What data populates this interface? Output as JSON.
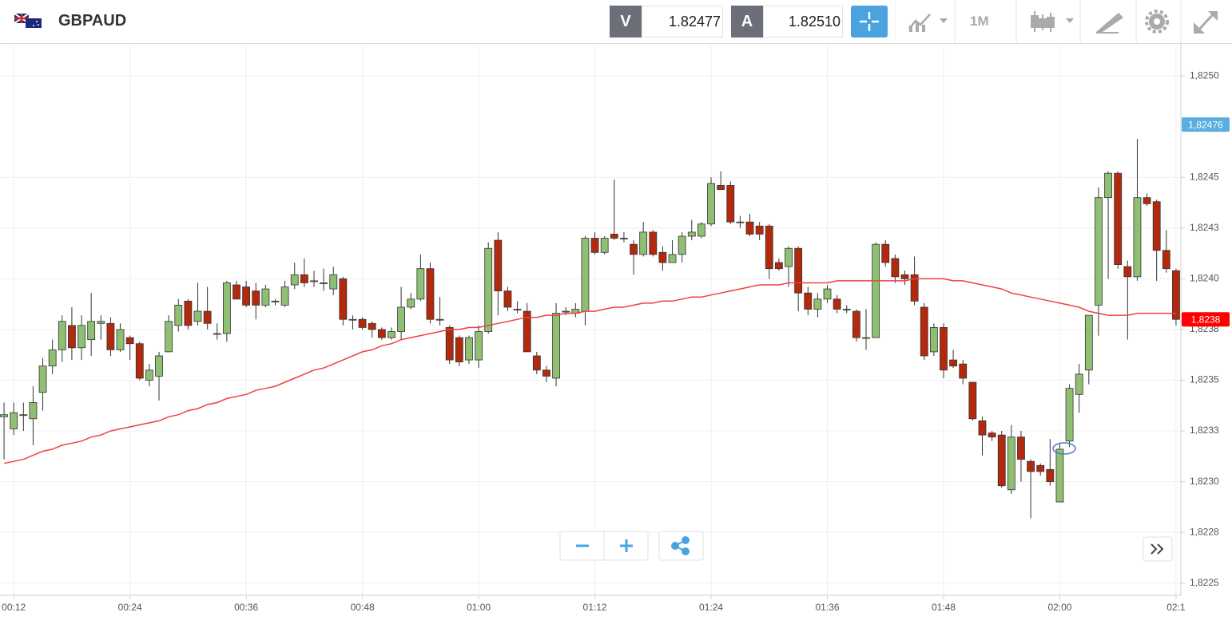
{
  "header": {
    "symbol": "GBPAUD",
    "bid_label": "V",
    "bid": "1.82477",
    "ask_label": "A",
    "ask": "1.82510",
    "timeframe": "1M"
  },
  "chart_data": {
    "type": "candlestick",
    "categories": [
      null,
      "00:12",
      null,
      null,
      null,
      null,
      null,
      null,
      null,
      null,
      null,
      null,
      null,
      "00:24",
      null,
      null,
      null,
      null,
      null,
      null,
      null,
      null,
      null,
      null,
      null,
      "00:36",
      null,
      null,
      null,
      null,
      null,
      null,
      null,
      null,
      null,
      null,
      null,
      "00:48",
      null,
      null,
      null,
      null,
      null,
      null,
      null,
      null,
      null,
      null,
      null,
      "01:00",
      null,
      null,
      null,
      null,
      null,
      null,
      null,
      null,
      null,
      null,
      null,
      "01:12",
      null,
      null,
      null,
      null,
      null,
      null,
      null,
      null,
      null,
      null,
      null,
      "01:24",
      null,
      null,
      null,
      null,
      null,
      null,
      null,
      null,
      null,
      null,
      null,
      "01:36",
      null,
      null,
      null,
      null,
      null,
      null,
      null,
      null,
      null,
      null,
      null,
      "01:48",
      null,
      null,
      null,
      null,
      null,
      null,
      null,
      null,
      null,
      null,
      null,
      "02:00",
      null,
      null,
      null,
      null,
      null,
      null,
      null,
      null,
      null,
      null,
      null,
      "02:1"
    ],
    "open": [
      1.82332,
      1.82326,
      1.82333,
      1.82331,
      1.82344,
      1.82357,
      1.82365,
      1.82377,
      1.82366,
      1.8237,
      1.82378,
      1.82378,
      1.82365,
      1.82371,
      1.82368,
      1.8235,
      1.82352,
      1.82364,
      1.82377,
      1.82389,
      1.82379,
      1.82384,
      1.82373,
      1.82373,
      1.82397,
      1.82396,
      1.82394,
      1.82387,
      1.82389,
      1.82387,
      1.82397,
      1.82402,
      1.82399,
      1.82398,
      1.82395,
      1.824,
      1.8238,
      1.8238,
      1.82378,
      1.82375,
      1.82371,
      1.82374,
      1.82386,
      1.8239,
      1.82405,
      1.8238,
      1.82376,
      1.82371,
      1.8236,
      1.8236,
      1.82374,
      1.82419,
      1.82394,
      1.82385,
      1.82384,
      1.82362,
      1.82355,
      1.82351,
      1.82384,
      1.82383,
      1.82384,
      1.8242,
      1.82413,
      1.82422,
      1.8242,
      1.82417,
      1.82412,
      1.82423,
      1.82413,
      1.82408,
      1.82412,
      1.82421,
      1.82421,
      1.82427,
      1.82446,
      1.82446,
      1.82428,
      1.82428,
      1.82426,
      1.82426,
      1.82408,
      1.82406,
      1.82415,
      1.82393,
      1.82385,
      1.8239,
      1.8239,
      1.82385,
      1.82384,
      1.82371,
      1.82371,
      1.82417,
      1.8241,
      1.82402,
      1.82402,
      1.82386,
      1.82364,
      1.82376,
      1.8236,
      1.82358,
      1.82349,
      1.8233,
      1.82324,
      1.82323,
      1.82296,
      1.82322,
      1.8231,
      1.82308,
      1.82306,
      1.8229,
      1.8232,
      1.82343,
      1.82355,
      1.82387,
      1.8244,
      1.82452,
      1.82406,
      1.82401,
      1.8244,
      1.82438,
      1.82414,
      1.82404
    ],
    "high": [
      1.82339,
      1.82339,
      1.82339,
      1.82347,
      1.82361,
      1.8237,
      1.82382,
      1.82386,
      1.82382,
      1.82393,
      1.82382,
      1.82381,
      1.82378,
      1.82372,
      1.82369,
      1.82358,
      1.82364,
      1.82382,
      1.8239,
      1.8239,
      1.82398,
      1.82396,
      1.82378,
      1.82399,
      1.82399,
      1.82399,
      1.82398,
      1.82397,
      1.8239,
      1.82399,
      1.82408,
      1.8241,
      1.82404,
      1.82405,
      1.82406,
      1.82401,
      1.82382,
      1.82381,
      1.82379,
      1.82376,
      1.82376,
      1.82396,
      1.82393,
      1.82412,
      1.82408,
      1.82391,
      1.82377,
      1.82372,
      1.82372,
      1.82377,
      1.82418,
      1.82423,
      1.82396,
      1.82389,
      1.82388,
      1.82364,
      1.82357,
      1.82388,
      1.82386,
      1.82388,
      1.82421,
      1.82423,
      1.82421,
      1.82449,
      1.82423,
      1.82419,
      1.82428,
      1.82424,
      1.82416,
      1.82419,
      1.82423,
      1.82429,
      1.82428,
      1.8245,
      1.82453,
      1.82448,
      1.82431,
      1.82432,
      1.82428,
      1.82427,
      1.8241,
      1.82416,
      1.82416,
      1.82396,
      1.82393,
      1.82397,
      1.82392,
      1.82387,
      1.82385,
      1.82385,
      1.82418,
      1.82419,
      1.82412,
      1.82404,
      1.82411,
      1.82388,
      1.82378,
      1.82378,
      1.82365,
      1.8236,
      1.82349,
      1.82332,
      1.82325,
      1.82325,
      1.82328,
      1.82325,
      1.82311,
      1.82309,
      1.82321,
      1.82319,
      1.82348,
      1.82358,
      1.82382,
      1.82445,
      1.82453,
      1.82453,
      1.82409,
      1.82469,
      1.82442,
      1.82439,
      1.82424,
      1.82405
    ],
    "low": [
      1.82311,
      1.82323,
      1.82325,
      1.82318,
      1.82335,
      1.82353,
      1.82359,
      1.8236,
      1.8236,
      1.82362,
      1.8237,
      1.82362,
      1.82364,
      1.8236,
      1.8235,
      1.82347,
      1.8234,
      1.82364,
      1.82374,
      1.82375,
      1.82377,
      1.82375,
      1.8237,
      1.82369,
      1.8239,
      1.82386,
      1.8238,
      1.82386,
      1.82387,
      1.82386,
      1.82395,
      1.82396,
      1.82396,
      1.82394,
      1.82392,
      1.82377,
      1.82375,
      1.82375,
      1.82371,
      1.8237,
      1.8237,
      1.8237,
      1.82385,
      1.82389,
      1.82378,
      1.82377,
      1.82358,
      1.82357,
      1.82358,
      1.82356,
      1.82373,
      1.82382,
      1.82384,
      1.82383,
      1.82364,
      1.82353,
      1.82349,
      1.82347,
      1.82382,
      1.82381,
      1.82377,
      1.82412,
      1.82412,
      1.82419,
      1.82418,
      1.82402,
      1.82411,
      1.82411,
      1.82404,
      1.82408,
      1.82408,
      1.82419,
      1.8242,
      1.82426,
      1.82444,
      1.82427,
      1.82425,
      1.82421,
      1.82419,
      1.824,
      1.82404,
      1.82396,
      1.82384,
      1.82382,
      1.82381,
      1.82388,
      1.82383,
      1.82383,
      1.82369,
      1.82365,
      1.82371,
      1.82406,
      1.82398,
      1.82397,
      1.82387,
      1.8236,
      1.82362,
      1.82351,
      1.82356,
      1.82348,
      1.8233,
      1.82313,
      1.8232,
      1.82297,
      1.82294,
      1.823,
      1.82282,
      1.82303,
      1.82298,
      1.8229,
      1.82317,
      1.82334,
      1.82348,
      1.82372,
      1.824,
      1.82405,
      1.8237,
      1.82399,
      1.82436,
      1.82399,
      1.82403,
      1.82377
    ],
    "close": [
      1.82333,
      1.82334,
      1.82333,
      1.82339,
      1.82357,
      1.82365,
      1.82379,
      1.82366,
      1.82377,
      1.82379,
      1.82379,
      1.82365,
      1.82375,
      1.82368,
      1.82351,
      1.82355,
      1.82362,
      1.82379,
      1.82387,
      1.82377,
      1.82384,
      1.82378,
      1.82373,
      1.82398,
      1.8239,
      1.82387,
      1.82387,
      1.82395,
      1.82389,
      1.82396,
      1.82402,
      1.82398,
      1.82399,
      1.82398,
      1.82402,
      1.8238,
      1.8238,
      1.82376,
      1.82375,
      1.82371,
      1.82374,
      1.82386,
      1.8239,
      1.82405,
      1.8238,
      1.8238,
      1.8236,
      1.82359,
      1.82371,
      1.82374,
      1.82415,
      1.82394,
      1.82386,
      1.82385,
      1.82364,
      1.82355,
      1.82352,
      1.82383,
      1.82384,
      1.82385,
      1.8242,
      1.82413,
      1.8242,
      1.8242,
      1.8242,
      1.82412,
      1.82423,
      1.82412,
      1.82408,
      1.82412,
      1.82421,
      1.82423,
      1.82427,
      1.82447,
      1.82444,
      1.82428,
      1.82428,
      1.82422,
      1.82422,
      1.82405,
      1.82405,
      1.82415,
      1.82393,
      1.82385,
      1.8239,
      1.82395,
      1.82385,
      1.82385,
      1.82371,
      1.82371,
      1.82417,
      1.82408,
      1.82401,
      1.824,
      1.82389,
      1.82362,
      1.82376,
      1.82355,
      1.82357,
      1.82351,
      1.82331,
      1.82323,
      1.82322,
      1.82298,
      1.82322,
      1.82311,
      1.82305,
      1.82305,
      1.823,
      1.82316,
      1.82346,
      1.82353,
      1.82382,
      1.8244,
      1.82452,
      1.82407,
      1.82401,
      1.8244,
      1.82437,
      1.82414,
      1.82405,
      1.8238
    ],
    "ma": [
      1.82309,
      1.8231,
      1.82311,
      1.82313,
      1.82315,
      1.82316,
      1.82318,
      1.82319,
      1.8232,
      1.82322,
      1.82323,
      1.82325,
      1.82326,
      1.82327,
      1.82328,
      1.82329,
      1.8233,
      1.82332,
      1.82333,
      1.82335,
      1.82336,
      1.82338,
      1.82339,
      1.82341,
      1.82342,
      1.82343,
      1.82345,
      1.82346,
      1.82347,
      1.82349,
      1.82351,
      1.82353,
      1.82355,
      1.82356,
      1.82358,
      1.8236,
      1.82362,
      1.82364,
      1.82365,
      1.82367,
      1.82368,
      1.8237,
      1.82371,
      1.82372,
      1.82373,
      1.82374,
      1.82375,
      1.82375,
      1.82376,
      1.82376,
      1.82377,
      1.82378,
      1.82379,
      1.8238,
      1.82381,
      1.82381,
      1.82382,
      1.82382,
      1.82383,
      1.82383,
      1.82384,
      1.82384,
      1.82385,
      1.82386,
      1.82386,
      1.82387,
      1.82388,
      1.82388,
      1.82389,
      1.82389,
      1.8239,
      1.82391,
      1.82391,
      1.82392,
      1.82393,
      1.82394,
      1.82395,
      1.82396,
      1.82397,
      1.82397,
      1.82397,
      1.82398,
      1.82398,
      1.82398,
      1.82398,
      1.82398,
      1.82399,
      1.82399,
      1.82399,
      1.82399,
      1.82399,
      1.82399,
      1.82399,
      1.82399,
      1.824,
      1.824,
      1.824,
      1.824,
      1.82399,
      1.82399,
      1.82398,
      1.82397,
      1.82396,
      1.82395,
      1.82393,
      1.82392,
      1.82391,
      1.8239,
      1.82389,
      1.82388,
      1.82387,
      1.82386,
      1.82384,
      1.82383,
      1.82382,
      1.82382,
      1.82382,
      1.82383,
      1.82383,
      1.82383,
      1.82383,
      1.82383
    ],
    "up_color": "#8fbf73",
    "down_color": "#b3290e",
    "ma_color": "#f04040",
    "ylim": [
      1.82244,
      1.82515
    ],
    "yticks": [
      {
        "value": 1.825,
        "label": "1,8250"
      },
      {
        "value": 1.8245,
        "label": "1,8245"
      },
      {
        "value": 1.82425,
        "label": "1,8243"
      },
      {
        "value": 1.824,
        "label": "1,8240"
      },
      {
        "value": 1.82375,
        "label": "1,8238"
      },
      {
        "value": 1.8235,
        "label": "1,8235"
      },
      {
        "value": 1.82325,
        "label": "1,8233"
      },
      {
        "value": 1.823,
        "label": "1,8230"
      },
      {
        "value": 1.82275,
        "label": "1,8228"
      },
      {
        "value": 1.8225,
        "label": "1,8225"
      }
    ],
    "price_labels": [
      {
        "value": 1.82476,
        "label": "1,82476",
        "color": "#5aaee0"
      },
      {
        "value": 1.8238,
        "label": "1,8238",
        "color": "#ff0000"
      }
    ],
    "grid": true
  }
}
